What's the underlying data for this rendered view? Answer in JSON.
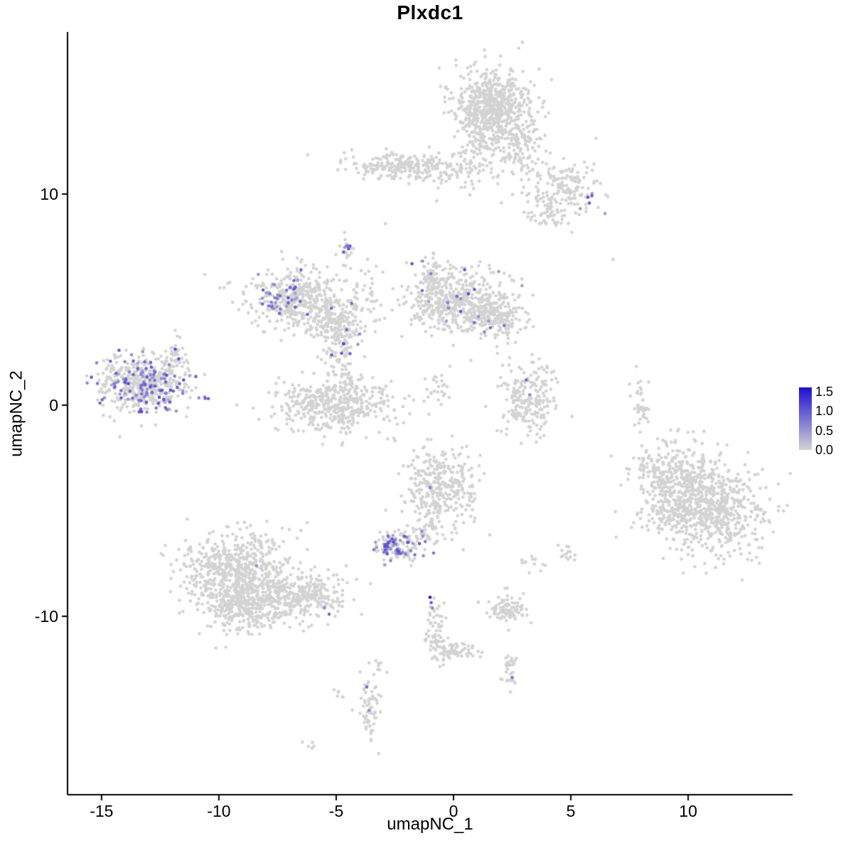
{
  "chart_data": {
    "type": "scatter",
    "title": "Plxdc1",
    "xlabel": "umapNC_1",
    "ylabel": "umapNC_2",
    "xlim": [
      -16.45,
      14.45
    ],
    "ylim": [
      -18.45,
      17.68
    ],
    "x_ticks": [
      {
        "value": -15,
        "label": "-15"
      },
      {
        "value": -10,
        "label": "-10"
      },
      {
        "value": -5,
        "label": "-5"
      },
      {
        "value": 0,
        "label": "0"
      },
      {
        "value": 5,
        "label": "5"
      },
      {
        "value": 10,
        "label": "10"
      }
    ],
    "y_ticks": [
      {
        "value": 10,
        "label": "10"
      },
      {
        "value": 0,
        "label": "0"
      },
      {
        "value": -10,
        "label": "-10"
      }
    ],
    "legend": {
      "vmin": 0.0,
      "vmax": 1.6,
      "ticks": [
        {
          "value": 1.5,
          "label": "1.5"
        },
        {
          "value": 1.0,
          "label": "1.0"
        },
        {
          "value": 0.5,
          "label": "0.5"
        },
        {
          "value": 0.0,
          "label": "0.0"
        }
      ]
    },
    "colors": {
      "low": "#d3d3d3",
      "high": "#1f0fd0",
      "axis": "#000000",
      "background": "#ffffff"
    },
    "point_radius": 2.3,
    "seed": 12345,
    "expr_value_min": 0.35,
    "expr_value_span": 0.75,
    "clusters": [
      {
        "name": "top-blob-main",
        "x": 1.6,
        "y": 14.2,
        "sx": 0.85,
        "sy": 0.9,
        "n": 620
      },
      {
        "name": "top-blob-sub",
        "x": 2.7,
        "y": 12.5,
        "sx": 0.55,
        "sy": 0.6,
        "n": 110
      },
      {
        "name": "top-blob-neck",
        "x": 0.9,
        "y": 12.8,
        "sx": 0.35,
        "sy": 0.5,
        "n": 45
      },
      {
        "name": "upper-band",
        "x": -2.2,
        "y": 11.3,
        "sx": 1.3,
        "sy": 0.32,
        "n": 230
      },
      {
        "name": "upper-band-right",
        "x": 0.6,
        "y": 11.1,
        "sx": 0.9,
        "sy": 0.45,
        "n": 70
      },
      {
        "name": "upper-band-sparse",
        "x": 2.7,
        "y": 11.5,
        "sx": 0.7,
        "sy": 0.35,
        "n": 30
      },
      {
        "name": "upper-right-clump",
        "x": 4.6,
        "y": 10.4,
        "sx": 0.85,
        "sy": 0.7,
        "n": 170,
        "ef": 0.035,
        "ec": [
          5.7,
          9.7
        ],
        "es": [
          0.35,
          0.25
        ]
      },
      {
        "name": "upper-right-small",
        "x": 4.0,
        "y": 9.0,
        "sx": 0.45,
        "sy": 0.3,
        "n": 40
      },
      {
        "name": "small-streak",
        "x": -4.55,
        "y": 7.25,
        "sx": 0.13,
        "sy": 0.42,
        "n": 24,
        "ef": 0.33,
        "ec": [
          -4.55,
          7.5
        ],
        "es": [
          0.1,
          0.12
        ]
      },
      {
        "name": "midleft-arc",
        "x": -6.6,
        "y": 5.1,
        "sx": 1.05,
        "sy": 0.72,
        "n": 430,
        "ef": 0.09,
        "ec": [
          -7.3,
          5.3
        ],
        "es": [
          0.55,
          0.5
        ]
      },
      {
        "name": "midleft-lobe",
        "x": -5.0,
        "y": 3.9,
        "sx": 0.6,
        "sy": 0.5,
        "n": 150,
        "ef": 0.03
      },
      {
        "name": "midleft-sparse",
        "x": -3.9,
        "y": 5.4,
        "sx": 0.5,
        "sy": 0.8,
        "n": 40
      },
      {
        "name": "mid-main",
        "x": 0.2,
        "y": 4.9,
        "sx": 1.2,
        "sy": 0.75,
        "n": 500,
        "ef": 0.028
      },
      {
        "name": "mid-right-lobe",
        "x": 1.9,
        "y": 4.1,
        "sx": 0.6,
        "sy": 0.45,
        "n": 150,
        "ef": 0.03
      },
      {
        "name": "mid-top-neck",
        "x": -0.9,
        "y": 6.2,
        "sx": 0.3,
        "sy": 0.45,
        "n": 60,
        "ef": 0.05
      },
      {
        "name": "center-small",
        "x": -4.75,
        "y": 2.8,
        "sx": 0.4,
        "sy": 0.85,
        "n": 90,
        "ef": 0.05
      },
      {
        "name": "left-main",
        "x": -13.2,
        "y": 1.0,
        "sx": 0.95,
        "sy": 0.7,
        "n": 540,
        "ef": 0.22
      },
      {
        "name": "left-appendage",
        "x": -11.8,
        "y": 2.3,
        "sx": 0.2,
        "sy": 0.5,
        "n": 38,
        "ef": 0.05
      },
      {
        "name": "bowl",
        "x": -5.1,
        "y": 0.0,
        "sx": 1.25,
        "sy": 0.65,
        "n": 470
      },
      {
        "name": "mid-diag-streak",
        "x": -0.6,
        "y": 0.8,
        "sx": 0.35,
        "sy": 0.45,
        "n": 25
      },
      {
        "name": "hook",
        "x": 3.2,
        "y": 0.3,
        "sx": 0.6,
        "sy": 0.85,
        "n": 210
      },
      {
        "name": "vert-streak",
        "x": 7.95,
        "y": 0.3,
        "sx": 0.15,
        "sy": 0.75,
        "n": 40
      },
      {
        "name": "right-big-a",
        "x": 9.7,
        "y": -3.9,
        "sx": 1.0,
        "sy": 1.0,
        "n": 420
      },
      {
        "name": "right-big-b",
        "x": 11.0,
        "y": -5.0,
        "sx": 1.2,
        "sy": 1.0,
        "n": 560
      },
      {
        "name": "right-big-edge",
        "x": 8.5,
        "y": -3.2,
        "sx": 0.4,
        "sy": 0.5,
        "n": 40
      },
      {
        "name": "center-mid",
        "x": -0.5,
        "y": -3.9,
        "sx": 0.8,
        "sy": 0.95,
        "n": 310
      },
      {
        "name": "center-neck",
        "x": -0.9,
        "y": -5.5,
        "sx": 0.25,
        "sy": 0.5,
        "n": 45
      },
      {
        "name": "dense-small",
        "x": -2.4,
        "y": -6.7,
        "sx": 0.45,
        "sy": 0.35,
        "n": 125,
        "ef": 0.42
      },
      {
        "name": "dense-sparse",
        "x": -1.5,
        "y": -6.2,
        "sx": 0.35,
        "sy": 0.3,
        "n": 25,
        "ef": 0.1
      },
      {
        "name": "bottomleft-main",
        "x": -9.2,
        "y": -8.0,
        "sx": 1.15,
        "sy": 1.05,
        "n": 700
      },
      {
        "name": "bottomleft-lower",
        "x": -8.6,
        "y": -9.5,
        "sx": 0.9,
        "sy": 0.6,
        "n": 260
      },
      {
        "name": "bottomleft-tail",
        "x": -6.2,
        "y": -9.0,
        "sx": 0.85,
        "sy": 0.55,
        "n": 230
      },
      {
        "name": "dark-streak",
        "x": -0.8,
        "y": -10.6,
        "sx": 0.2,
        "sy": 0.75,
        "n": 55
      },
      {
        "name": "dark-streak-diag",
        "x": -0.3,
        "y": -11.6,
        "sx": 0.35,
        "sy": 0.25,
        "n": 40
      },
      {
        "name": "dark-streak-foot",
        "x": 0.4,
        "y": -11.7,
        "sx": 0.4,
        "sy": 0.15,
        "n": 28
      },
      {
        "name": "small-square",
        "x": 2.3,
        "y": -9.7,
        "sx": 0.4,
        "sy": 0.35,
        "n": 85
      },
      {
        "name": "lower-tail",
        "x": 2.35,
        "y": -12.5,
        "sx": 0.2,
        "sy": 0.45,
        "n": 30
      },
      {
        "name": "bottom-column",
        "x": -3.6,
        "y": -14.3,
        "sx": 0.22,
        "sy": 0.7,
        "n": 60
      },
      {
        "name": "bottom-tiny",
        "x": -4.9,
        "y": -13.7,
        "sx": 0.15,
        "sy": 0.1,
        "n": 6
      },
      {
        "name": "bottom-bit",
        "x": -3.2,
        "y": -12.3,
        "sx": 0.15,
        "sy": 0.2,
        "n": 8
      },
      {
        "name": "small-clump-a",
        "x": 4.9,
        "y": -7.05,
        "sx": 0.25,
        "sy": 0.2,
        "n": 14
      },
      {
        "name": "small-clump-b",
        "x": 3.4,
        "y": -7.5,
        "sx": 0.3,
        "sy": 0.2,
        "n": 12
      },
      {
        "name": "bottom-left-tiny",
        "x": -6.1,
        "y": -16.1,
        "sx": 0.2,
        "sy": 0.1,
        "n": 5
      }
    ],
    "singles": [
      [
        -1.0,
        -9.1,
        1.8
      ],
      [
        -0.95,
        -9.35,
        1.0
      ],
      [
        -0.9,
        -9.6,
        0.6
      ],
      [
        -0.85,
        -7.0,
        0.8
      ],
      [
        -1.0,
        -3.9,
        0.7
      ],
      [
        -8.4,
        -7.6,
        0.6
      ],
      [
        -5.5,
        -9.6,
        0.6
      ],
      [
        -5.3,
        -9.9,
        0.9
      ],
      [
        3.1,
        1.2,
        0.9
      ],
      [
        3.25,
        0.5,
        0.6
      ],
      [
        2.5,
        -12.9,
        0.8
      ],
      [
        -3.7,
        -13.35,
        0.9
      ],
      [
        -3.6,
        -14.45,
        0.6
      ],
      [
        6.8,
        6.9,
        0
      ],
      [
        -2.9,
        8.6,
        0
      ],
      [
        -10.6,
        6.2,
        0
      ]
    ]
  }
}
